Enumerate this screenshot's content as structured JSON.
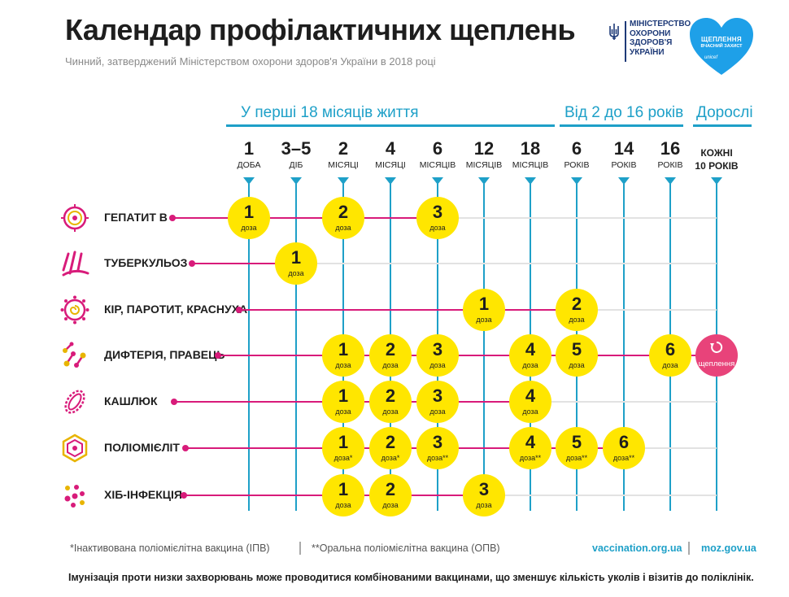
{
  "title": "Календар профілактичних щеплень",
  "subtitle": "Чинний, затверджений Міністерством охорони здоров'я України в 2018 році",
  "ministry_logo": {
    "text": "Міністерство охорони здоров'я України",
    "icon": "trident-icon"
  },
  "heart_logo": {
    "line1": "ЩЕПЛЕННЯ",
    "line2": "ВЧАСНИЙ ЗАХИСТ",
    "brand": "unicef"
  },
  "groups": [
    {
      "label": "У перші 18 місяців життя"
    },
    {
      "label": "Від 2 до 16 років"
    },
    {
      "label": "Дорослі"
    }
  ],
  "columns": [
    {
      "num": "1",
      "unit": "доба"
    },
    {
      "num": "3–5",
      "unit": "діб"
    },
    {
      "num": "2",
      "unit": "місяці"
    },
    {
      "num": "4",
      "unit": "місяці"
    },
    {
      "num": "6",
      "unit": "місяців"
    },
    {
      "num": "12",
      "unit": "місяців"
    },
    {
      "num": "18",
      "unit": "місяців"
    },
    {
      "num": "6",
      "unit": "років"
    },
    {
      "num": "14",
      "unit": "років"
    },
    {
      "num": "16",
      "unit": "років"
    },
    {
      "num": "КОЖНІ",
      "unit": "10 РОКІВ"
    }
  ],
  "dose_label": "доза",
  "booster_label": "щеплення",
  "rows": [
    {
      "label": "Гепатит В",
      "icon": "hepatitis-icon",
      "doses": [
        {
          "col": 0,
          "n": "1"
        },
        {
          "col": 2,
          "n": "2"
        },
        {
          "col": 4,
          "n": "3"
        }
      ]
    },
    {
      "label": "Туберкульоз",
      "icon": "tuberculosis-icon",
      "doses": [
        {
          "col": 1,
          "n": "1"
        }
      ]
    },
    {
      "label": "Кір, паротит, краснуха",
      "icon": "measles-icon",
      "doses": [
        {
          "col": 5,
          "n": "1"
        },
        {
          "col": 7,
          "n": "2"
        }
      ]
    },
    {
      "label": "Дифтерія, правець",
      "icon": "diphtheria-icon",
      "doses": [
        {
          "col": 2,
          "n": "1"
        },
        {
          "col": 3,
          "n": "2"
        },
        {
          "col": 4,
          "n": "3"
        },
        {
          "col": 6,
          "n": "4"
        },
        {
          "col": 7,
          "n": "5"
        },
        {
          "col": 9,
          "n": "6"
        }
      ],
      "booster": 10
    },
    {
      "label": "Кашлюк",
      "icon": "pertussis-icon",
      "doses": [
        {
          "col": 2,
          "n": "1"
        },
        {
          "col": 3,
          "n": "2"
        },
        {
          "col": 4,
          "n": "3"
        },
        {
          "col": 6,
          "n": "4"
        }
      ]
    },
    {
      "label": "Поліомієліт",
      "icon": "polio-icon",
      "doses": [
        {
          "col": 2,
          "n": "1",
          "mark": "*"
        },
        {
          "col": 3,
          "n": "2",
          "mark": "*"
        },
        {
          "col": 4,
          "n": "3",
          "mark": "**"
        },
        {
          "col": 6,
          "n": "4",
          "mark": "**"
        },
        {
          "col": 7,
          "n": "5",
          "mark": "**"
        },
        {
          "col": 8,
          "n": "6",
          "mark": "**"
        }
      ]
    },
    {
      "label": "ХІБ-інфекція",
      "icon": "hib-icon",
      "doses": [
        {
          "col": 2,
          "n": "1"
        },
        {
          "col": 3,
          "n": "2"
        },
        {
          "col": 5,
          "n": "3"
        }
      ]
    }
  ],
  "footer": {
    "note1": "*Інактивована поліомієлітна вакцина (ІПВ)",
    "note2": "**Оральна поліомієлітна вакцина (ОПВ)",
    "link1": "vaccination.org.ua",
    "link2": "moz.gov.ua",
    "bottom": "Імунізація проти низки захворювань може проводитися комбінованими вакцинами, що зменшує кількість уколів і візитів до поліклінік."
  },
  "colors": {
    "accent": "#1ea0c8",
    "magenta": "#d81b7a",
    "dose": "#ffe600",
    "booster": "#e8437a",
    "ministry": "#1e3a78",
    "heart": "#1ea0e8"
  }
}
